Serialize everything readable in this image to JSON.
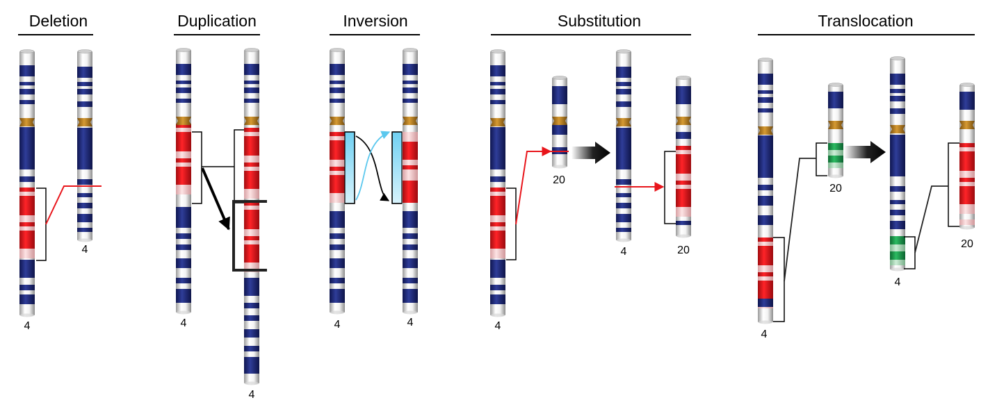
{
  "panels": [
    {
      "title": "Deletion",
      "labels": [
        "4",
        "4"
      ]
    },
    {
      "title": "Duplication",
      "labels": [
        "4",
        "4"
      ]
    },
    {
      "title": "Inversion",
      "labels": [
        "4",
        "4"
      ]
    },
    {
      "title": "Substitution",
      "labels": [
        "4",
        "20",
        "4",
        "20"
      ]
    },
    {
      "title": "Translocation",
      "labels": [
        "4",
        "20",
        "4",
        "20"
      ]
    }
  ],
  "colors": {
    "band_blue": "#1e2a78",
    "band_red": "#e8151b",
    "band_pink": "#f4c9cb",
    "band_green": "#1f9a4e",
    "band_lightgreen": "#a9dcb7",
    "centromere": "#b97d1c",
    "inversion_highlight": "#5bc8ee",
    "red_line": "#e8151b"
  }
}
